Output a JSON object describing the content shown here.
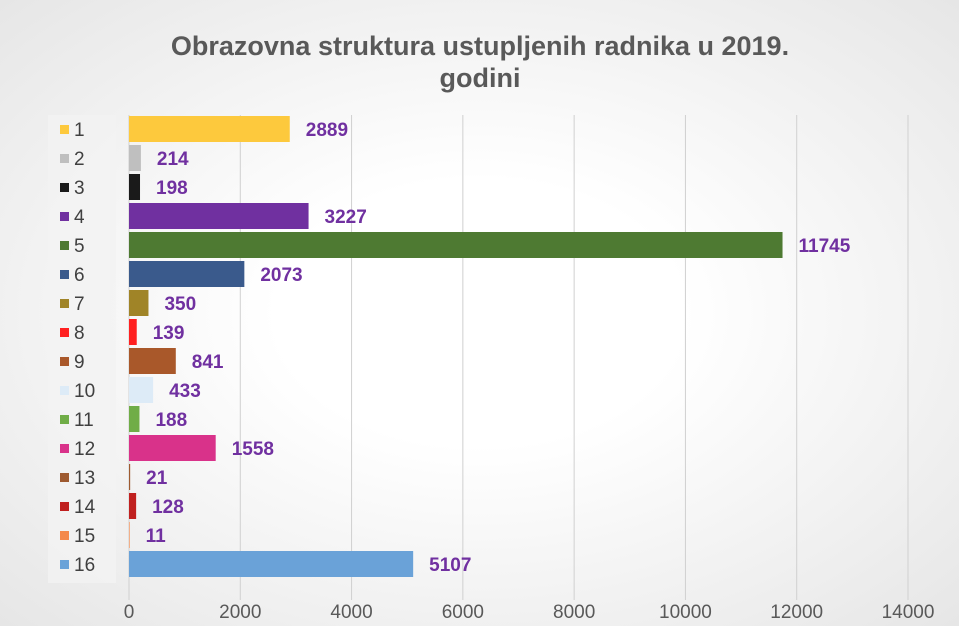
{
  "chart_data": {
    "type": "bar",
    "orientation": "horizontal",
    "title": "Obrazovna struktura ustupljenih radnika u 2019. godini",
    "categories": [
      "1",
      "2",
      "3",
      "4",
      "5",
      "6",
      "7",
      "8",
      "9",
      "10",
      "11",
      "12",
      "13",
      "14",
      "15",
      "16"
    ],
    "values": [
      2889,
      214,
      198,
      3227,
      11745,
      2073,
      350,
      139,
      841,
      433,
      188,
      1558,
      21,
      128,
      11,
      5107
    ],
    "colors": [
      "#fdc93d",
      "#bfbfbf",
      "#1a1a1a",
      "#7030a0",
      "#4e7a32",
      "#3a5a8c",
      "#a08427",
      "#ff2020",
      "#a9582a",
      "#ddebf7",
      "#70ad47",
      "#d9328a",
      "#9e5a30",
      "#c0201f",
      "#f4884a",
      "#6aa2d8"
    ],
    "xlim": [
      0,
      14000
    ],
    "xticks": [
      0,
      2000,
      4000,
      6000,
      8000,
      10000,
      12000,
      14000
    ],
    "grid": true,
    "legend": "left",
    "label_color": "#7030a0"
  }
}
